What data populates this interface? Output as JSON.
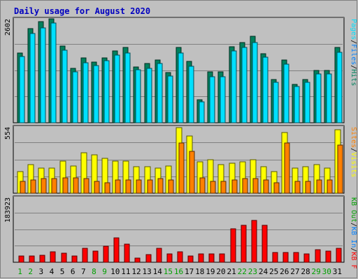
{
  "title": "Daily usage for August 2020",
  "colors": {
    "background": "#c0c0c0",
    "outer_border": "#808080",
    "title": "#0000c0",
    "hits": "#00805c",
    "files": "#0080ff",
    "pages": "#00e0ff",
    "visits": "#ffff00",
    "sites": "#ff8000",
    "kbytes": "#ff0000",
    "weekend_day": "#00a000",
    "weekday_day": "#000000",
    "grid": "#808080"
  },
  "chart_data": [
    {
      "type": "bar",
      "title": "Daily usage for August 2020",
      "categories": [
        "1",
        "2",
        "3",
        "4",
        "5",
        "6",
        "7",
        "8",
        "9",
        "10",
        "11",
        "12",
        "13",
        "14",
        "15",
        "16",
        "17",
        "18",
        "19",
        "20",
        "21",
        "22",
        "23",
        "24",
        "25",
        "26",
        "27",
        "28",
        "29",
        "30",
        "31"
      ],
      "weekend_days": [
        "1",
        "2",
        "8",
        "9",
        "15",
        "16",
        "22",
        "23",
        "29",
        "30"
      ],
      "ymax_label": "2602",
      "ylim": [
        0,
        2602
      ],
      "grid": true,
      "legend": [
        {
          "label": "Hits",
          "color": "#00805c"
        },
        {
          "label": "/",
          "color": "#000000"
        },
        {
          "label": "Files",
          "color": "#0080ff"
        },
        {
          "label": "/",
          "color": "#000000"
        },
        {
          "label": "Pages",
          "color": "#00e0ff"
        }
      ],
      "series": [
        {
          "name": "Hits",
          "values": [
            1740,
            2360,
            2540,
            2600,
            1920,
            1360,
            1620,
            1520,
            1630,
            1800,
            1880,
            1400,
            1480,
            1580,
            1260,
            1890,
            1530,
            580,
            1280,
            1270,
            1910,
            2010,
            2160,
            1730,
            1090,
            1570,
            960,
            1080,
            1310,
            1310,
            1880
          ]
        },
        {
          "name": "Files",
          "values": [
            1660,
            2240,
            2380,
            2490,
            1810,
            1280,
            1500,
            1440,
            1550,
            1690,
            1740,
            1320,
            1360,
            1480,
            1170,
            1740,
            1420,
            520,
            1160,
            1150,
            1790,
            1880,
            2000,
            1640,
            1020,
            1470,
            910,
            1010,
            1220,
            1230,
            1760
          ]
        },
        {
          "name": "Pages",
          "values": [
            1660,
            2240,
            2380,
            2490,
            1810,
            1280,
            1500,
            1440,
            1550,
            1690,
            1740,
            1320,
            1360,
            1480,
            1170,
            1740,
            1420,
            520,
            1160,
            1150,
            1790,
            1880,
            2000,
            1640,
            1020,
            1470,
            910,
            1010,
            1220,
            1230,
            1760
          ]
        }
      ]
    },
    {
      "type": "bar",
      "categories": [
        "1",
        "2",
        "3",
        "4",
        "5",
        "6",
        "7",
        "8",
        "9",
        "10",
        "11",
        "12",
        "13",
        "14",
        "15",
        "16",
        "17",
        "18",
        "19",
        "20",
        "21",
        "22",
        "23",
        "24",
        "25",
        "26",
        "27",
        "28",
        "29",
        "30",
        "31"
      ],
      "ymax_label": "554",
      "ylim": [
        0,
        554
      ],
      "grid": true,
      "legend": [
        {
          "label": "Visits",
          "color": "#ffff00"
        },
        {
          "label": "/",
          "color": "#000000"
        },
        {
          "label": "Sites",
          "color": "#ff8000"
        }
      ],
      "series": [
        {
          "name": "Visits",
          "values": [
            180,
            240,
            210,
            210,
            270,
            230,
            340,
            320,
            290,
            270,
            270,
            220,
            220,
            210,
            230,
            550,
            480,
            260,
            280,
            240,
            250,
            260,
            280,
            220,
            180,
            510,
            210,
            220,
            240,
            210,
            530
          ]
        },
        {
          "name": "Sites",
          "values": [
            100,
            110,
            120,
            120,
            130,
            130,
            120,
            100,
            90,
            110,
            110,
            110,
            110,
            120,
            110,
            420,
            350,
            130,
            100,
            100,
            110,
            120,
            120,
            110,
            90,
            420,
            100,
            100,
            110,
            110,
            400
          ]
        }
      ]
    },
    {
      "type": "bar",
      "categories": [
        "1",
        "2",
        "3",
        "4",
        "5",
        "6",
        "7",
        "8",
        "9",
        "10",
        "11",
        "12",
        "13",
        "14",
        "15",
        "16",
        "17",
        "18",
        "19",
        "20",
        "21",
        "22",
        "23",
        "24",
        "25",
        "26",
        "27",
        "28",
        "29",
        "30",
        "31"
      ],
      "ymax_label": "183923",
      "ylim": [
        0,
        183923
      ],
      "grid": true,
      "legend": [
        {
          "label": "KB F",
          "color": "#ff0000"
        },
        {
          "label": "/",
          "color": "#000000"
        },
        {
          "label": "KB In",
          "color": "#0080ff"
        },
        {
          "label": "/",
          "color": "#000000"
        },
        {
          "label": "KB Out",
          "color": "#00a000"
        }
      ],
      "series": [
        {
          "name": "KB F",
          "values": [
            17000,
            17000,
            20000,
            29000,
            26000,
            18000,
            39000,
            32000,
            45000,
            69000,
            51000,
            11000,
            22000,
            39000,
            24000,
            29000,
            17000,
            24000,
            24000,
            24000,
            95000,
            105000,
            119000,
            104000,
            28000,
            28000,
            28000,
            24000,
            36000,
            32000,
            40000
          ]
        }
      ]
    }
  ]
}
